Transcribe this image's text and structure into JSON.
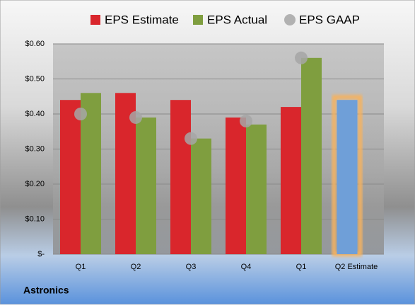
{
  "chart_data": {
    "type": "bar",
    "categories": [
      "Q1",
      "Q2",
      "Q3",
      "Q4",
      "Q1",
      "Q2 Estimate"
    ],
    "series": [
      {
        "name": "EPS Estimate",
        "color": "#d9262c",
        "values": [
          0.44,
          0.46,
          0.44,
          0.39,
          0.42,
          0.44
        ],
        "kind": "bar"
      },
      {
        "name": "EPS Actual",
        "color": "#7f9e3f",
        "values": [
          0.46,
          0.39,
          0.33,
          0.37,
          0.56,
          null
        ],
        "kind": "bar"
      },
      {
        "name": "EPS GAAP",
        "color": "#a6a6a6",
        "values": [
          0.4,
          0.39,
          0.33,
          0.38,
          0.56,
          null
        ],
        "kind": "dot"
      }
    ],
    "highlight": {
      "index": 5,
      "color": "#6f9fd8",
      "glow": "#f6b25e"
    },
    "ylim": [
      0,
      0.6
    ],
    "yticks": [
      {
        "value": 0,
        "label": "$-"
      },
      {
        "value": 0.1,
        "label": "$0.10"
      },
      {
        "value": 0.2,
        "label": "$0.20"
      },
      {
        "value": 0.3,
        "label": "$0.30"
      },
      {
        "value": 0.4,
        "label": "$0.40"
      },
      {
        "value": 0.5,
        "label": "$0.50"
      },
      {
        "value": 0.6,
        "label": "$0.60"
      }
    ],
    "grid": true,
    "footer": "Astronics"
  }
}
